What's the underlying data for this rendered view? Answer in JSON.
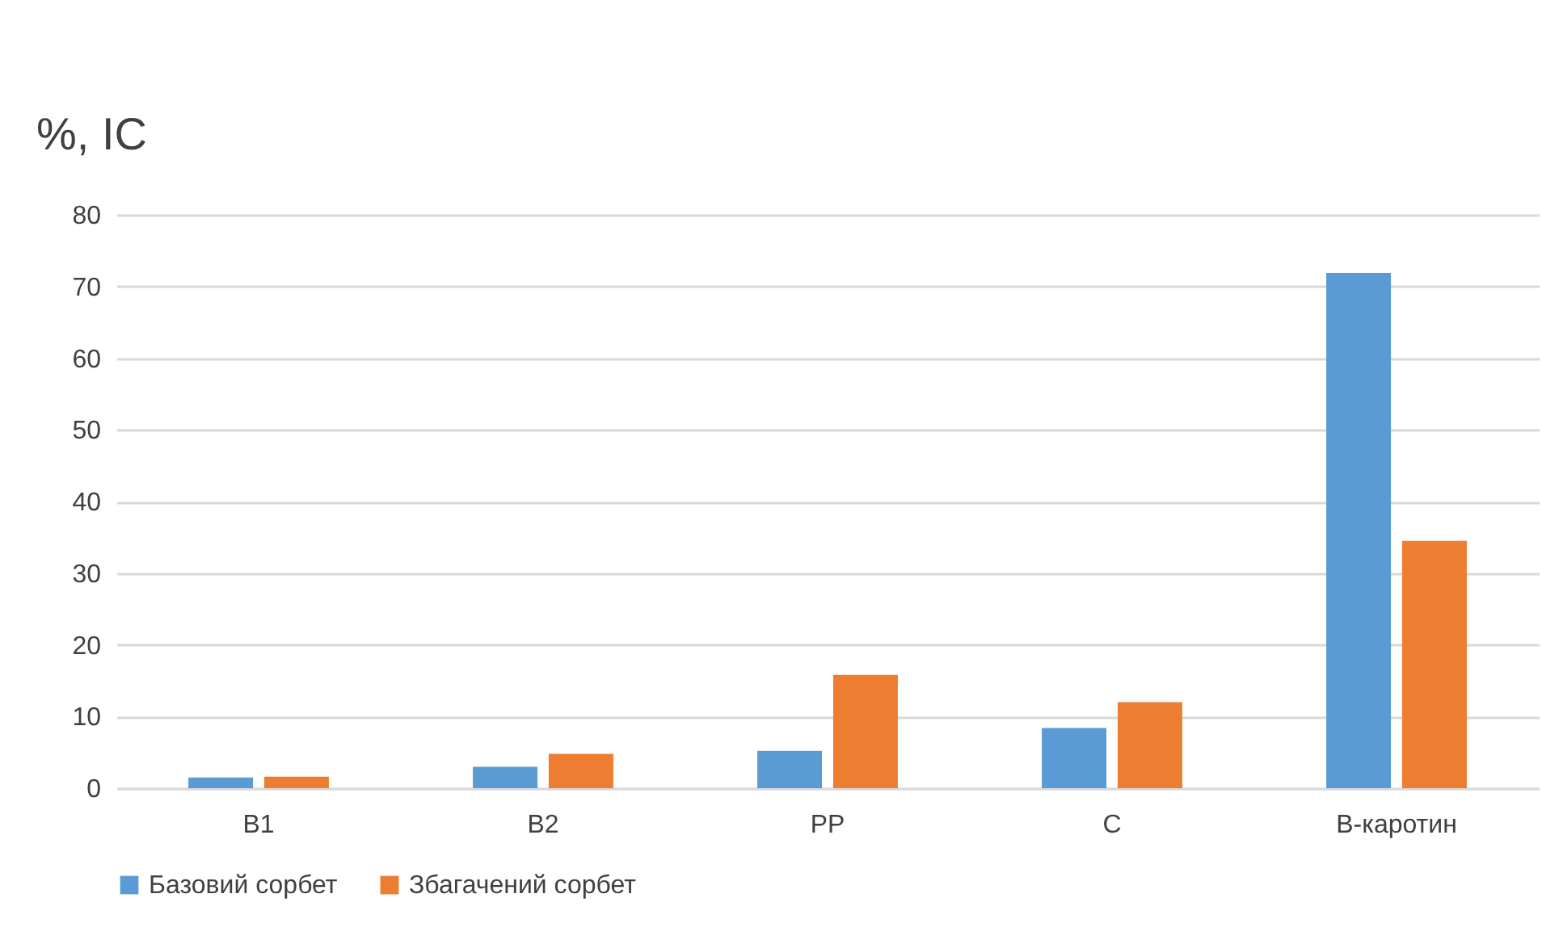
{
  "chart_data": {
    "type": "bar",
    "ylabel": "%, IC",
    "categories": [
      "B1",
      "B2",
      "PP",
      "C",
      "B-каротин"
    ],
    "series": [
      {
        "name": "Базовий сорбет",
        "color": "#5b9bd5",
        "values": [
          1.5,
          3.0,
          5.2,
          8.4,
          71.9
        ]
      },
      {
        "name": "Збагачений сорбет",
        "color": "#ed7d31",
        "values": [
          1.6,
          4.8,
          15.8,
          12.0,
          34.5
        ]
      }
    ],
    "ylim": [
      0,
      80
    ],
    "yticks": [
      0,
      10,
      20,
      30,
      40,
      50,
      60,
      70,
      80
    ],
    "grid": "y",
    "legend": "bottom"
  }
}
